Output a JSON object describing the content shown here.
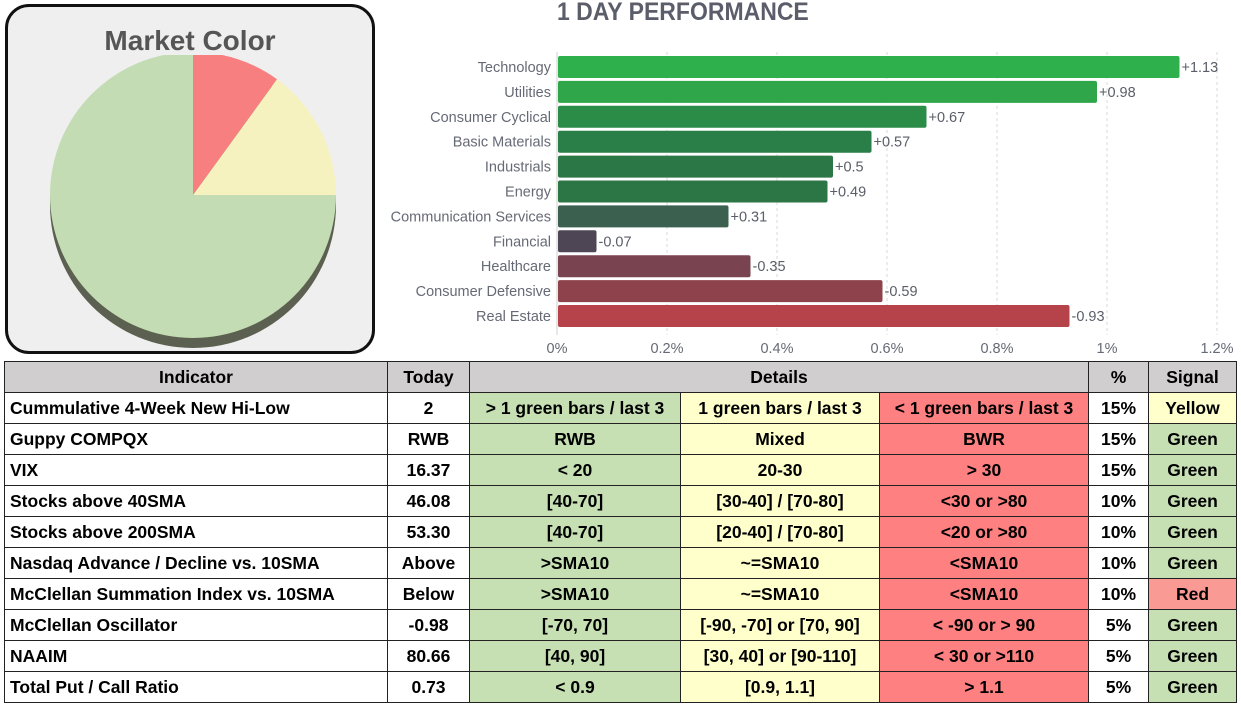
{
  "market_color": {
    "title": "Market Color",
    "slices": [
      {
        "name": "Red",
        "value": 10,
        "color": "#f77f7f"
      },
      {
        "name": "Yellow",
        "value": 15,
        "color": "#f5f2c0"
      },
      {
        "name": "Green",
        "value": 75,
        "color": "#c4dcb4"
      }
    ]
  },
  "chart_data": {
    "type": "bar",
    "orientation": "horizontal",
    "title": "1 DAY PERFORMANCE",
    "categories": [
      "Technology",
      "Utilities",
      "Consumer Cyclical",
      "Basic Materials",
      "Industrials",
      "Energy",
      "Communication Services",
      "Financial",
      "Healthcare",
      "Consumer Defensive",
      "Real Estate"
    ],
    "values": [
      1.13,
      0.98,
      0.67,
      0.57,
      0.5,
      0.49,
      0.31,
      -0.07,
      -0.35,
      -0.59,
      -0.93
    ],
    "value_labels": [
      "+1.13",
      "+0.98",
      "+0.67",
      "+0.57",
      "+0.5",
      "+0.49",
      "+0.31",
      "-0.07",
      "-0.35",
      "-0.59",
      "-0.93"
    ],
    "bar_colors": [
      "#2eb04c",
      "#30a64b",
      "#2b8c48",
      "#2a7e47",
      "#2c7746",
      "#2c7645",
      "#3b6050",
      "#4e4655",
      "#7a4350",
      "#8e434c",
      "#b54349"
    ],
    "x_ticks": [
      "0%",
      "0.2%",
      "0.4%",
      "0.6%",
      "0.8%",
      "1%",
      "1.2%"
    ],
    "xlim": [
      0,
      1.2
    ],
    "bar_length": "absolute value",
    "grid": true
  },
  "table": {
    "headers": {
      "indicator": "Indicator",
      "today": "Today",
      "details": "Details",
      "percent": "%",
      "signal": "Signal"
    },
    "rows": [
      {
        "indicator": "Cummulative 4-Week New Hi-Low",
        "today": "2",
        "green": "> 1 green bars / last 3",
        "yellow": "1 green bars / last 3",
        "red": "< 1 green bars / last 3",
        "percent": "15%",
        "signal": "Yellow"
      },
      {
        "indicator": "Guppy COMPQX",
        "today": "RWB",
        "green": "RWB",
        "yellow": "Mixed",
        "red": "BWR",
        "percent": "15%",
        "signal": "Green"
      },
      {
        "indicator": "VIX",
        "today": "16.37",
        "green": "< 20",
        "yellow": "20-30",
        "red": "> 30",
        "percent": "15%",
        "signal": "Green"
      },
      {
        "indicator": "Stocks above 40SMA",
        "today": "46.08",
        "green": "[40-70]",
        "yellow": "[30-40] / [70-80]",
        "red": "<30 or >80",
        "percent": "10%",
        "signal": "Green"
      },
      {
        "indicator": "Stocks above 200SMA",
        "today": "53.30",
        "green": "[40-70]",
        "yellow": "[20-40] / [70-80]",
        "red": "<20 or >80",
        "percent": "10%",
        "signal": "Green"
      },
      {
        "indicator": "Nasdaq Advance / Decline vs. 10SMA",
        "today": "Above",
        "green": ">SMA10",
        "yellow": "~=SMA10",
        "red": "<SMA10",
        "percent": "10%",
        "signal": "Green"
      },
      {
        "indicator": "McClellan Summation Index vs. 10SMA",
        "today": "Below",
        "green": ">SMA10",
        "yellow": "~=SMA10",
        "red": "<SMA10",
        "percent": "10%",
        "signal": "Red"
      },
      {
        "indicator": "McClellan Oscillator",
        "today": "-0.98",
        "green": "[-70,  70]",
        "yellow": "[-90, -70] or [70, 90]",
        "red": "< -90 or > 90",
        "percent": "5%",
        "signal": "Green"
      },
      {
        "indicator": "NAAIM",
        "today": "80.66",
        "green": "[40, 90]",
        "yellow": "[30, 40] or [90-110]",
        "red": "< 30 or >110",
        "percent": "5%",
        "signal": "Green"
      },
      {
        "indicator": "Total Put / Call Ratio",
        "today": "0.73",
        "green": "< 0.9",
        "yellow": "[0.9, 1.1]",
        "red": "> 1.1",
        "percent": "5%",
        "signal": "Green"
      }
    ]
  }
}
